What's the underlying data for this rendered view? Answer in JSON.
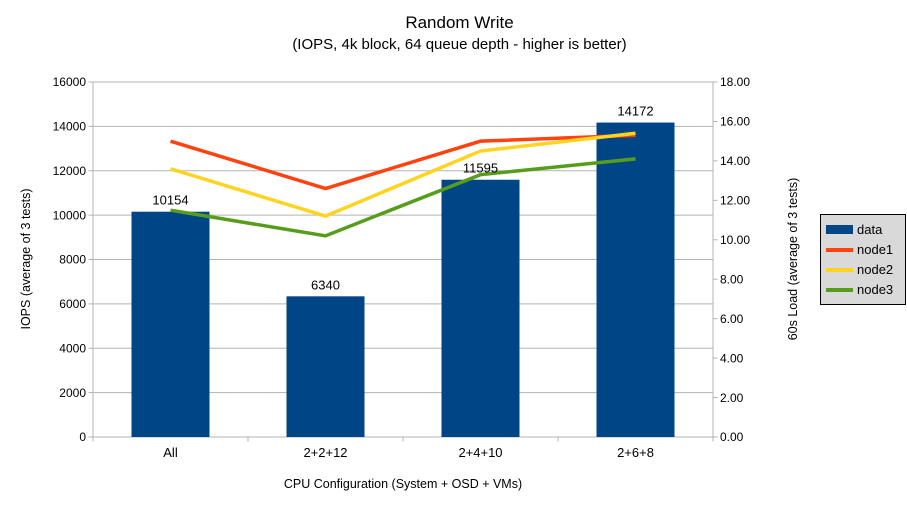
{
  "chart": {
    "title": "Random Write",
    "subtitle": "(IOPS, 4k block, 64 queue depth - higher is better)"
  },
  "chart_data": {
    "type": "bar+line",
    "background": "#ffffff",
    "text_color": "#000000",
    "categories": [
      "All",
      "2+2+12",
      "2+4+10",
      "2+6+8"
    ],
    "bar_series": {
      "name": "data",
      "color": "#004586",
      "axis": "left",
      "values": [
        10154,
        6340,
        11595,
        14172
      ],
      "data_labels": [
        "10154",
        "6340",
        "11595",
        "14172"
      ]
    },
    "line_series": [
      {
        "name": "node1",
        "color": "#ff420e",
        "axis": "right",
        "values": [
          15.0,
          12.6,
          15.0,
          15.3
        ]
      },
      {
        "name": "node2",
        "color": "#ffd320",
        "axis": "right",
        "values": [
          13.6,
          11.2,
          14.5,
          15.4
        ]
      },
      {
        "name": "node3",
        "color": "#579d1c",
        "axis": "right",
        "values": [
          11.5,
          10.2,
          13.3,
          14.1
        ]
      }
    ],
    "left_axis": {
      "title": "IOPS (average of 3 tests)",
      "min": 0,
      "max": 16000,
      "step": 2000,
      "tick_labels": [
        "0",
        "2000",
        "4000",
        "6000",
        "8000",
        "10000",
        "12000",
        "14000",
        "16000"
      ]
    },
    "right_axis": {
      "title": "60s Load (average of 3 tests)",
      "min": 0,
      "max": 18,
      "step": 2,
      "tick_labels": [
        "0.00",
        "2.00",
        "4.00",
        "6.00",
        "8.00",
        "10.00",
        "12.00",
        "14.00",
        "16.00",
        "18.00"
      ]
    },
    "x_axis": {
      "title": "CPU Configuration (System + OSD + VMs)"
    },
    "grid": {
      "horizontal": true,
      "vertical": false,
      "color": "#b3b3b3"
    },
    "legend": {
      "position": "right",
      "background": "#d9d9d9",
      "border_color": "#000000",
      "items": [
        {
          "label": "data",
          "swatch": "rect",
          "color": "#004586"
        },
        {
          "label": "node1",
          "swatch": "line",
          "color": "#ff420e"
        },
        {
          "label": "node2",
          "swatch": "line",
          "color": "#ffd320"
        },
        {
          "label": "node3",
          "swatch": "line",
          "color": "#579d1c"
        }
      ]
    }
  }
}
